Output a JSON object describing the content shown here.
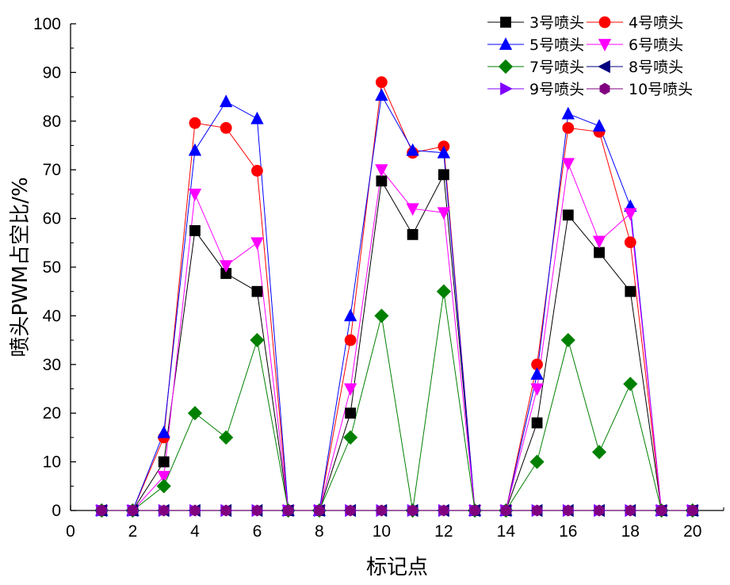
{
  "chart_data": {
    "type": "line",
    "xlabel": "标记点",
    "ylabel": "喷头PWM占空比/%",
    "xlim": [
      0,
      21
    ],
    "ylim": [
      0,
      100
    ],
    "xticks": [
      0,
      2,
      4,
      6,
      8,
      10,
      12,
      14,
      16,
      18,
      20
    ],
    "yticks": [
      0,
      10,
      20,
      30,
      40,
      50,
      60,
      70,
      80,
      90,
      100
    ],
    "legend_position": "top-right",
    "grid": false,
    "x": [
      1,
      2,
      3,
      4,
      5,
      6,
      7,
      8,
      9,
      10,
      11,
      12,
      13,
      14,
      15,
      16,
      17,
      18,
      19,
      20
    ],
    "series": [
      {
        "name": "3号喷头",
        "color": "#000000",
        "marker": "square",
        "values": [
          0,
          0,
          10,
          57.5,
          48.7,
          45,
          0,
          0,
          20,
          67.7,
          56.7,
          69,
          0,
          0,
          18,
          60.7,
          53,
          45,
          0,
          0
        ]
      },
      {
        "name": "4号喷头",
        "color": "#ff0000",
        "marker": "circle",
        "values": [
          0,
          0,
          15,
          79.6,
          78.6,
          69.8,
          0,
          0,
          35,
          88,
          73.5,
          74.8,
          0,
          0,
          30,
          78.6,
          77.8,
          55.1,
          0,
          0
        ]
      },
      {
        "name": "5号喷头",
        "color": "#0000ff",
        "marker": "triangle-up",
        "values": [
          0,
          0,
          16,
          74,
          84,
          80.5,
          0,
          0,
          40,
          85.3,
          74,
          73.5,
          0,
          0,
          28,
          81.5,
          79,
          62.5,
          0,
          0
        ]
      },
      {
        "name": "6号喷头",
        "color": "#ff00ff",
        "marker": "triangle-down",
        "values": [
          0,
          0,
          7,
          65,
          50.3,
          55,
          0,
          0,
          25,
          70,
          62,
          61.2,
          0,
          0,
          25,
          71.3,
          55.3,
          61,
          0,
          0
        ]
      },
      {
        "name": "7号喷头",
        "color": "#008000",
        "marker": "diamond",
        "values": [
          0,
          0,
          5,
          20,
          15,
          35,
          0,
          0,
          15,
          40,
          0,
          45,
          0,
          0,
          10,
          35,
          12,
          26,
          0,
          0
        ]
      },
      {
        "name": "8号喷头",
        "color": "#000080",
        "marker": "triangle-left",
        "values": [
          0,
          0,
          0,
          0,
          0,
          0,
          0,
          0,
          0,
          0,
          0,
          0,
          0,
          0,
          0,
          0,
          0,
          0,
          0,
          0
        ]
      },
      {
        "name": "9号喷头",
        "color": "#8000ff",
        "marker": "triangle-right",
        "values": [
          0,
          0,
          0,
          0,
          0,
          0,
          0,
          0,
          0,
          0,
          0,
          0,
          0,
          0,
          0,
          0,
          0,
          0,
          0,
          0
        ]
      },
      {
        "name": "10号喷头",
        "color": "#800080",
        "marker": "hexagon",
        "values": [
          0,
          0,
          0,
          0,
          0,
          0,
          0,
          0,
          0,
          0,
          0,
          0,
          0,
          0,
          0,
          0,
          0,
          0,
          0,
          0
        ]
      }
    ]
  }
}
